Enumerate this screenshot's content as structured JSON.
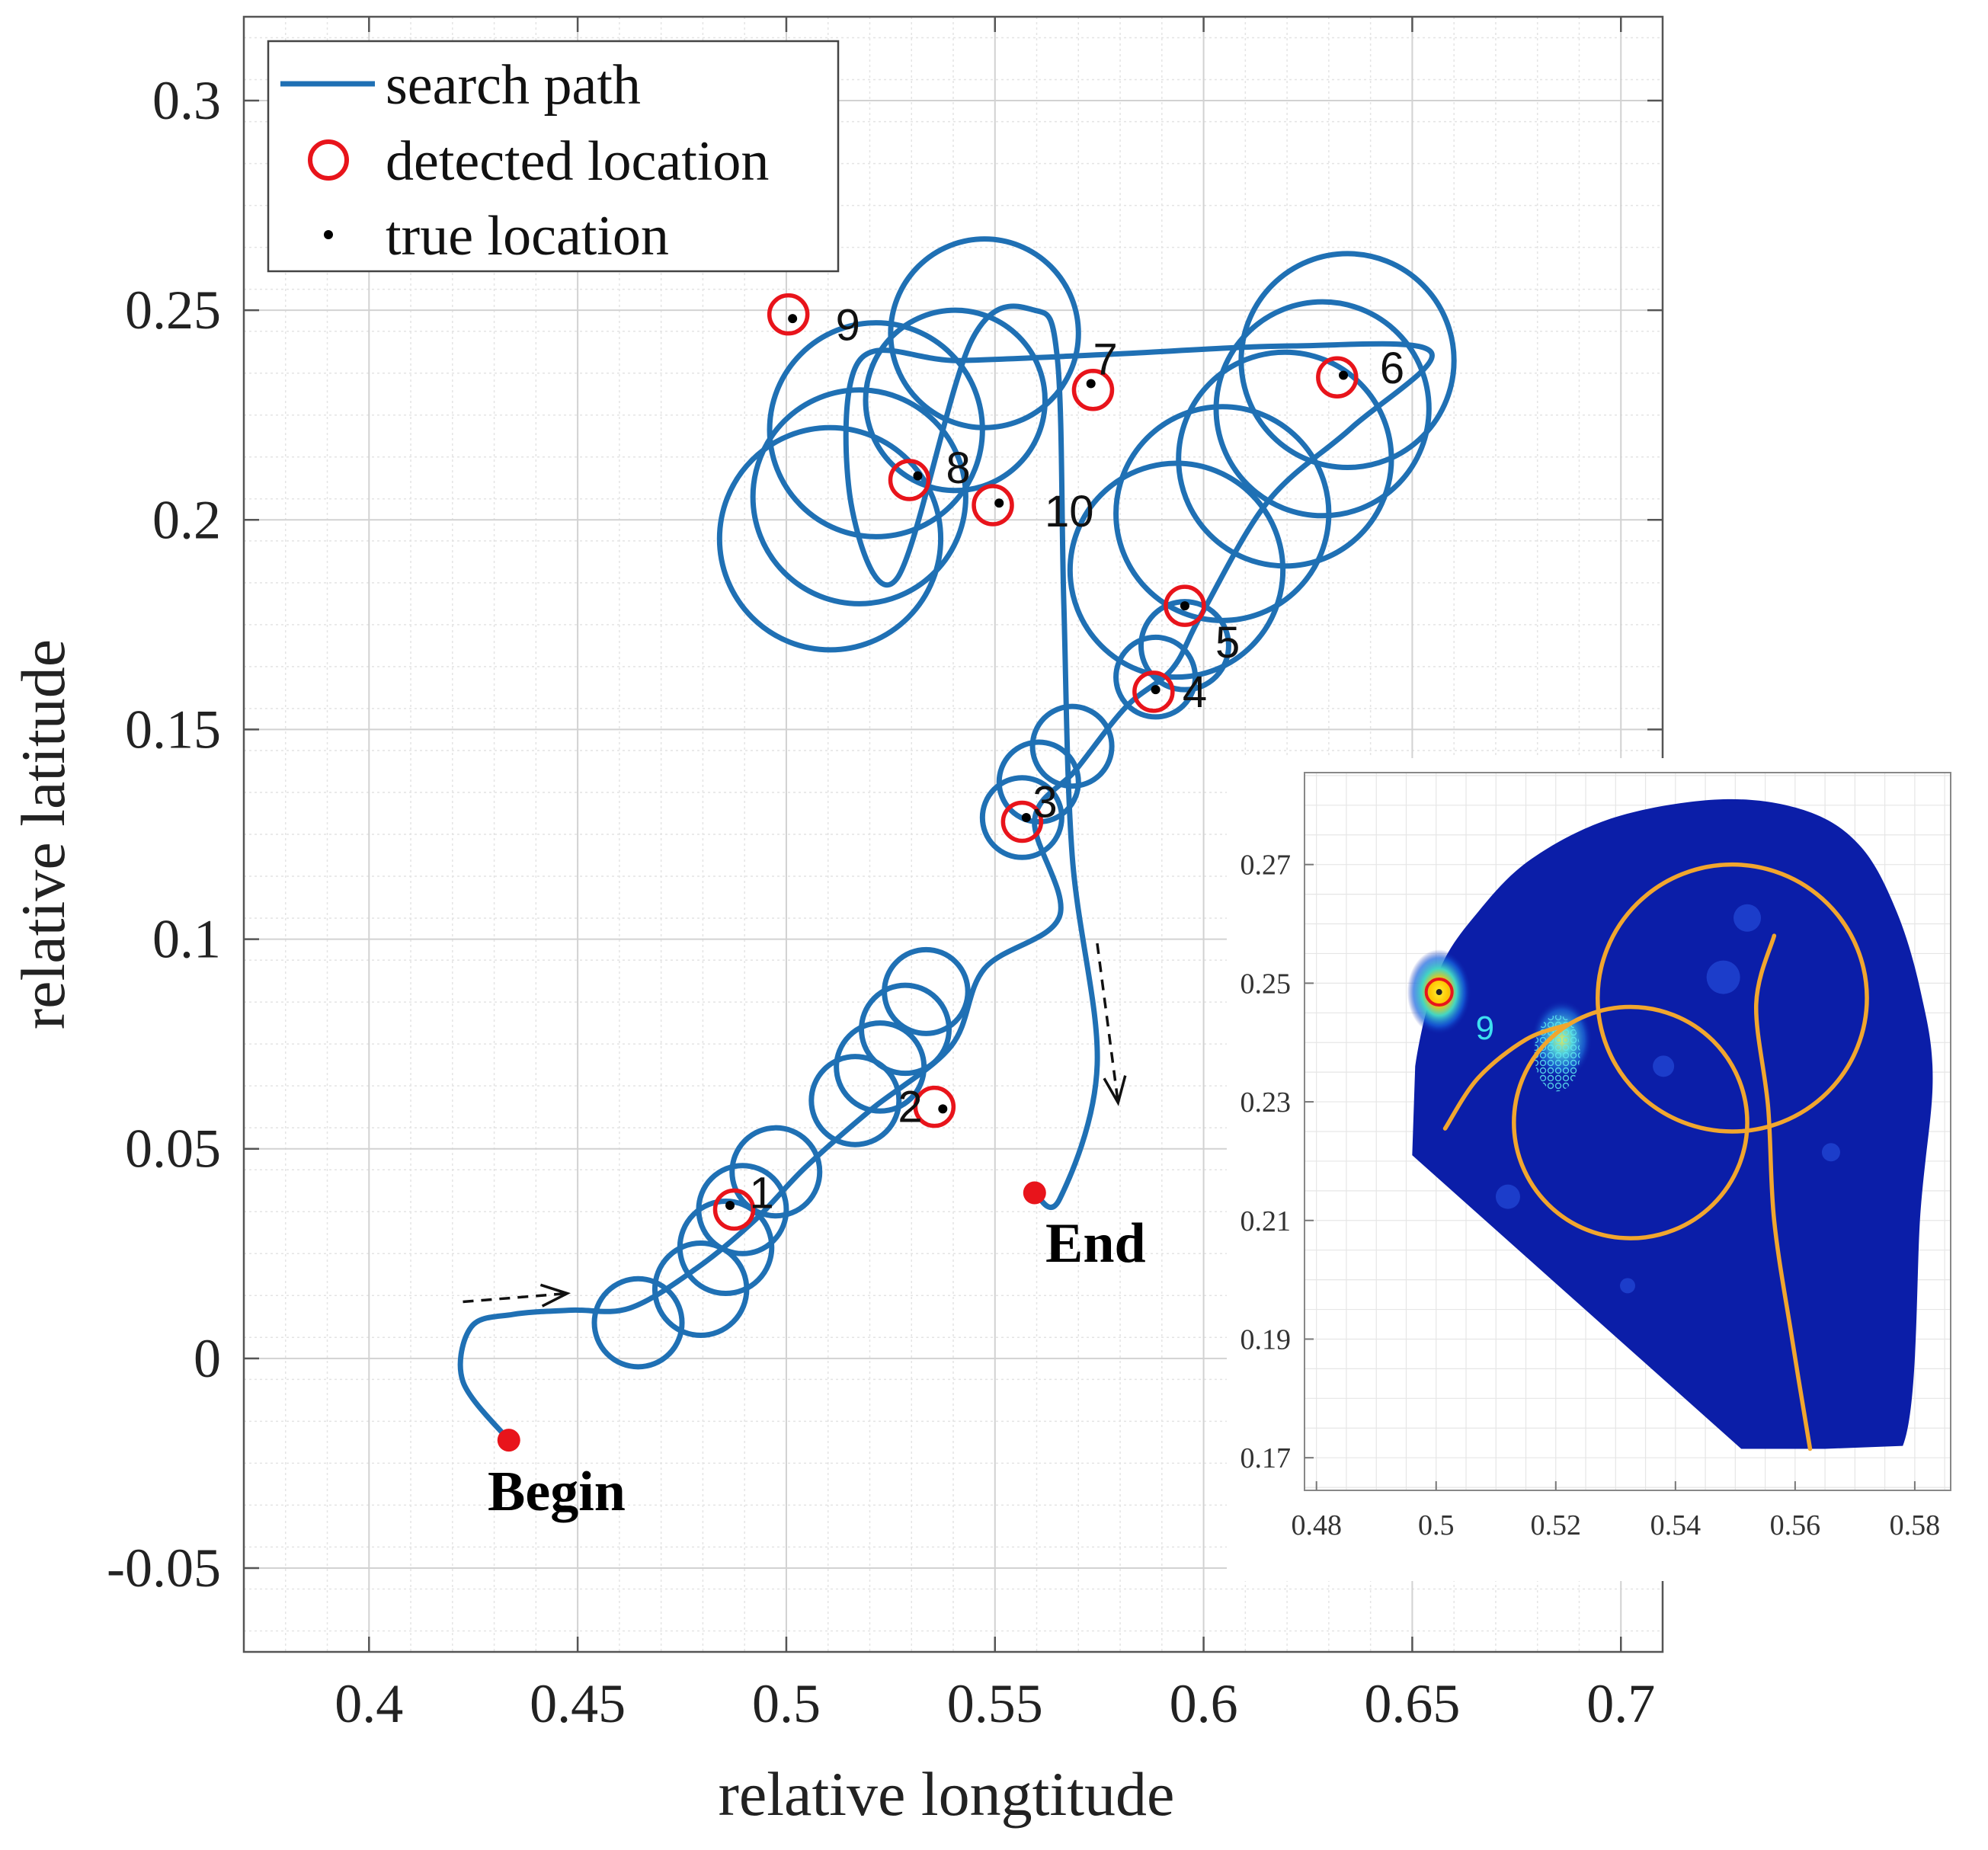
{
  "chart_data": [
    {
      "type": "line",
      "xlabel": "relative longtitude",
      "ylabel": "relative latitude",
      "xlim": [
        0.37,
        0.71
      ],
      "ylim": [
        -0.07,
        0.32
      ],
      "x_ticks": [
        "0.4",
        "0.45",
        "0.5",
        "0.55",
        "0.6",
        "0.65",
        "0.7"
      ],
      "y_ticks": [
        "0.3",
        "0.25",
        "0.2",
        "0.15",
        "0.1",
        "0.05",
        "0",
        "-0.05"
      ],
      "grid": true,
      "legend": {
        "placement": "top-left",
        "entries": [
          "search path",
          "detected location",
          "true location"
        ]
      },
      "colors": {
        "path": "#1f70b4",
        "detected": "#e8141b",
        "true": "#000000",
        "endpoints": "#e8141b"
      },
      "targets": [
        {
          "label": "1",
          "detected": [
            0.4875,
            0.0355
          ],
          "true": [
            0.4865,
            0.0365
          ]
        },
        {
          "label": "2",
          "detected": [
            0.5355,
            0.06
          ],
          "true": [
            0.5375,
            0.0595
          ]
        },
        {
          "label": "3",
          "detected": [
            0.5565,
            0.128
          ],
          "true": [
            0.5575,
            0.129
          ]
        },
        {
          "label": "4",
          "detected": [
            0.588,
            0.159
          ],
          "true": [
            0.5885,
            0.1595
          ]
        },
        {
          "label": "5",
          "detected": [
            0.5955,
            0.1795
          ],
          "true": [
            0.5955,
            0.1795
          ]
        },
        {
          "label": "6",
          "detected": [
            0.632,
            0.234
          ],
          "true": [
            0.6335,
            0.2345
          ]
        },
        {
          "label": "7",
          "detected": [
            0.5735,
            0.231
          ],
          "true": [
            0.573,
            0.2325
          ]
        },
        {
          "label": "8",
          "detected": [
            0.5295,
            0.2095
          ],
          "true": [
            0.5315,
            0.2105
          ]
        },
        {
          "label": "9",
          "detected": [
            0.5005,
            0.249
          ],
          "true": [
            0.5015,
            0.248
          ]
        },
        {
          "label": "10",
          "detected": [
            0.5495,
            0.2035
          ],
          "true": [
            0.551,
            0.204
          ]
        }
      ],
      "path_waypoints": [
        [
          0.4335,
          -0.0195
        ],
        [
          0.4225,
          -0.0055
        ],
        [
          0.4245,
          0.0075
        ],
        [
          0.4345,
          0.0105
        ],
        [
          0.4485,
          0.0115
        ],
        [
          0.4625,
          0.012
        ],
        [
          0.4785,
          0.0215
        ],
        [
          0.4925,
          0.033
        ],
        [
          0.5045,
          0.0455
        ],
        [
          0.5205,
          0.0595
        ],
        [
          0.5395,
          0.0745
        ],
        [
          0.5475,
          0.093
        ],
        [
          0.5655,
          0.1055
        ],
        [
          0.5595,
          0.1285
        ],
        [
          0.5695,
          0.1405
        ],
        [
          0.5815,
          0.1555
        ],
        [
          0.5925,
          0.1645
        ],
        [
          0.5995,
          0.1775
        ],
        [
          0.6155,
          0.2045
        ],
        [
          0.6355,
          0.222
        ],
        [
          0.6545,
          0.24
        ],
        [
          0.6215,
          0.2415
        ],
        [
          0.5775,
          0.2395
        ],
        [
          0.5415,
          0.238
        ],
        [
          0.5175,
          0.238
        ],
        [
          0.5155,
          0.204
        ],
        [
          0.5265,
          0.186
        ],
        [
          0.5445,
          0.243
        ],
        [
          0.5595,
          0.25
        ],
        [
          0.565,
          0.238
        ],
        [
          0.5665,
          0.18
        ],
        [
          0.5685,
          0.12
        ],
        [
          0.5745,
          0.07
        ],
        [
          0.5655,
          0.038
        ],
        [
          0.5595,
          0.0395
        ]
      ],
      "path_loops": [
        {
          "center": [
            0.4645,
            0.0085
          ],
          "radius": 0.0105
        },
        {
          "center": [
            0.4795,
            0.0165
          ],
          "radius": 0.011
        },
        {
          "center": [
            0.4855,
            0.0265
          ],
          "radius": 0.011
        },
        {
          "center": [
            0.4895,
            0.0355
          ],
          "radius": 0.0105
        },
        {
          "center": [
            0.4975,
            0.0445
          ],
          "radius": 0.0105
        },
        {
          "center": [
            0.5165,
            0.0615
          ],
          "radius": 0.0105
        },
        {
          "center": [
            0.5225,
            0.0695
          ],
          "radius": 0.0105
        },
        {
          "center": [
            0.5285,
            0.0785
          ],
          "radius": 0.0105
        },
        {
          "center": [
            0.5335,
            0.0875
          ],
          "radius": 0.01
        },
        {
          "center": [
            0.5565,
            0.129
          ],
          "radius": 0.0095
        },
        {
          "center": [
            0.5605,
            0.1375
          ],
          "radius": 0.0095
        },
        {
          "center": [
            0.5685,
            0.146
          ],
          "radius": 0.0095
        },
        {
          "center": [
            0.5885,
            0.1625
          ],
          "radius": 0.0095
        },
        {
          "center": [
            0.5955,
            0.17
          ],
          "radius": 0.0105
        },
        {
          "center": [
            0.5935,
            0.188
          ],
          "radius": 0.0255
        },
        {
          "center": [
            0.6045,
            0.2015
          ],
          "radius": 0.0255
        },
        {
          "center": [
            0.6195,
            0.2145
          ],
          "radius": 0.0255
        },
        {
          "center": [
            0.6285,
            0.2265
          ],
          "radius": 0.0255
        },
        {
          "center": [
            0.6345,
            0.238
          ],
          "radius": 0.0255
        },
        {
          "center": [
            0.5475,
            0.2445
          ],
          "radius": 0.0225
        },
        {
          "center": [
            0.5405,
            0.2285
          ],
          "radius": 0.0215
        },
        {
          "center": [
            0.5215,
            0.2215
          ],
          "radius": 0.0255
        },
        {
          "center": [
            0.5175,
            0.2055
          ],
          "radius": 0.0255
        },
        {
          "center": [
            0.5105,
            0.1955
          ],
          "radius": 0.0265
        }
      ],
      "begin": {
        "label": "Begin",
        "point": [
          0.4335,
          -0.0195
        ]
      },
      "end": {
        "label": "End",
        "point": [
          0.5595,
          0.0395
        ]
      },
      "direction_arrows": [
        {
          "from": [
            0.4225,
            0.0135
          ],
          "to": [
            0.4475,
            0.0155
          ]
        },
        {
          "from": [
            0.5745,
            0.099
          ],
          "to": [
            0.5795,
            0.061
          ]
        }
      ]
    },
    {
      "type": "heatmap",
      "role": "inset",
      "xlim": [
        0.478,
        0.586
      ],
      "ylim": [
        0.1645,
        0.2855
      ],
      "x_ticks": [
        "0.48",
        "0.5",
        "0.52",
        "0.54",
        "0.56",
        "0.58"
      ],
      "y_ticks": [
        "0.27",
        "0.25",
        "0.23",
        "0.21",
        "0.19",
        "0.17"
      ],
      "grid": true,
      "colors": {
        "background": "#0b1ea8",
        "path": "#f1a62e",
        "hot": "#ffd200",
        "label": "#3ee0f0"
      },
      "region_boundary": [
        [
          0.496,
          0.221
        ],
        [
          0.4965,
          0.236
        ],
        [
          0.5005,
          0.252
        ],
        [
          0.507,
          0.262
        ],
        [
          0.516,
          0.271
        ],
        [
          0.53,
          0.278
        ],
        [
          0.548,
          0.281
        ],
        [
          0.562,
          0.279
        ],
        [
          0.571,
          0.273
        ],
        [
          0.577,
          0.262
        ],
        [
          0.581,
          0.2485
        ],
        [
          0.583,
          0.234
        ],
        [
          0.581,
          0.212
        ],
        [
          0.578,
          0.172
        ],
        [
          0.565,
          0.1715
        ],
        [
          0.551,
          0.1715
        ]
      ],
      "hotspots": [
        {
          "center": [
            0.5005,
            0.2485
          ],
          "intensity": 1.0
        },
        {
          "center": [
            0.521,
            0.2405
          ],
          "intensity": 0.6
        }
      ],
      "target": {
        "label": "9",
        "detected": [
          0.5005,
          0.2485
        ]
      },
      "path_segments": [
        {
          "type": "circle",
          "center": [
            0.5325,
            0.2265
          ],
          "radius": 0.0195
        },
        {
          "type": "circle",
          "center": [
            0.5495,
            0.2475
          ],
          "radius": 0.0225
        },
        {
          "type": "polyline",
          "points": [
            [
              0.5015,
              0.2255
            ],
            [
              0.507,
              0.234
            ],
            [
              0.515,
              0.2405
            ],
            [
              0.522,
              0.243
            ]
          ]
        },
        {
          "type": "polyline",
          "points": [
            [
              0.5565,
              0.258
            ],
            [
              0.5535,
              0.2465
            ],
            [
              0.5555,
              0.229
            ],
            [
              0.5565,
              0.21
            ],
            [
              0.5595,
              0.19
            ],
            [
              0.5625,
              0.1715
            ]
          ]
        }
      ]
    }
  ]
}
